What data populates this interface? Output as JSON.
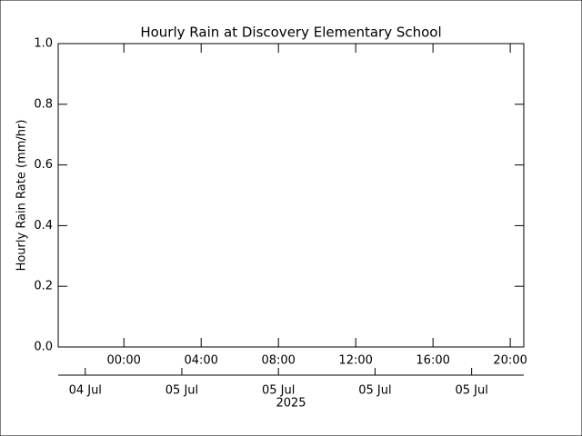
{
  "chart_data": {
    "type": "line",
    "title": "Hourly Rain at Discovery Elementary School",
    "y_label": "Hourly Rain Rate (mm/hr)",
    "ylim": [
      0,
      1
    ],
    "yticks": [
      {
        "value": 0,
        "label": "0.0"
      },
      0.2,
      0.4,
      0.6,
      0.8,
      {
        "value": 1,
        "label": "1.0"
      }
    ],
    "xlim": [
      -3.4,
      20.7
    ],
    "xticks": [
      {
        "value": 0,
        "label": "00:00"
      },
      {
        "value": 4,
        "label": "04:00"
      },
      {
        "value": 8,
        "label": "08:00"
      },
      {
        "value": 12,
        "label": "12:00"
      },
      {
        "value": 16,
        "label": "16:00"
      },
      {
        "value": 20,
        "label": "20:00"
      }
    ],
    "x2ticks": [
      {
        "value": -2,
        "label": "04 Jul"
      },
      {
        "value": 3,
        "label": "05 Jul"
      },
      {
        "value": 8,
        "label": "05 Jul"
      },
      {
        "value": 13,
        "label": "05 Jul"
      },
      {
        "value": 18,
        "label": "05 Jul"
      }
    ],
    "year_label": "2025",
    "grid": false
  }
}
